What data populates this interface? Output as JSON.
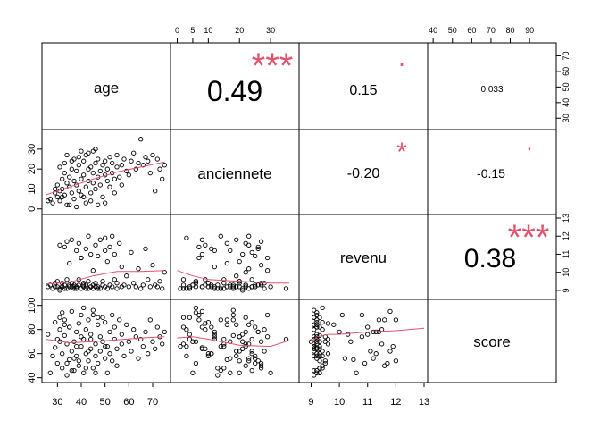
{
  "chart_data": {
    "type": "scatter",
    "variables": [
      "age",
      "anciennete",
      "revenu",
      "score"
    ],
    "axes": {
      "age": {
        "range": [
          25,
          76
        ],
        "ticks": [
          30,
          40,
          50,
          60,
          70
        ]
      },
      "anciennete": {
        "range": [
          -1,
          38
        ],
        "ticks_top": [
          0,
          5,
          10,
          20,
          30
        ],
        "ticks_left": [
          0,
          10,
          20,
          30
        ]
      },
      "revenu": {
        "range": [
          8.7,
          13
        ],
        "ticks": [
          9,
          10,
          11,
          12,
          13
        ]
      },
      "score": {
        "range": [
          39,
          102
        ],
        "ticks_top": [
          40,
          50,
          60,
          70,
          80,
          90
        ],
        "ticks_left": [
          40,
          60,
          80,
          100
        ]
      }
    },
    "correlations": [
      {
        "pair": [
          "age",
          "anciennete"
        ],
        "r_label": "0.49",
        "stars": "***",
        "text_size": "large"
      },
      {
        "pair": [
          "age",
          "revenu"
        ],
        "r_label": "0.15",
        "stars": ".",
        "text_size": "small"
      },
      {
        "pair": [
          "age",
          "score"
        ],
        "r_label": "0.033",
        "stars": "",
        "text_size": "tiny"
      },
      {
        "pair": [
          "anciennete",
          "revenu"
        ],
        "r_label": "-0.20",
        "stars": "*",
        "text_size": "small"
      },
      {
        "pair": [
          "anciennete",
          "score"
        ],
        "r_label": "-0.15",
        "stars": ".",
        "text_size": "small"
      },
      {
        "pair": [
          "revenu",
          "score"
        ],
        "r_label": "0.38",
        "stars": "***",
        "text_size": "large"
      }
    ],
    "smooth_color": "#DF536B",
    "star_color": "#DF536B",
    "point_style": "open-circle",
    "points": [
      [
        27,
        5,
        9.3,
        44
      ],
      [
        28,
        3,
        9.1,
        58
      ],
      [
        29,
        8,
        9.2,
        65
      ],
      [
        30,
        6,
        9.5,
        52
      ],
      [
        30,
        12,
        9.2,
        72
      ],
      [
        31,
        9,
        11.5,
        80
      ],
      [
        31,
        4,
        9.1,
        90
      ],
      [
        32,
        15,
        9.4,
        48
      ],
      [
        32,
        10,
        9.2,
        60
      ],
      [
        33,
        7,
        11.4,
        88
      ],
      [
        33,
        18,
        9.3,
        75
      ],
      [
        34,
        13,
        9.1,
        42
      ],
      [
        34,
        2,
        9.6,
        68
      ],
      [
        35,
        16,
        10.5,
        55
      ],
      [
        35,
        11,
        9.2,
        82
      ],
      [
        36,
        8,
        11.8,
        95
      ],
      [
        36,
        20,
        9.4,
        62
      ],
      [
        37,
        14,
        9.1,
        46
      ],
      [
        37,
        5,
        9.3,
        70
      ],
      [
        38,
        12,
        11.2,
        78
      ],
      [
        38,
        19,
        9.2,
        58
      ],
      [
        39,
        9,
        9.6,
        85
      ],
      [
        39,
        22,
        11.6,
        50
      ],
      [
        40,
        15,
        9.1,
        66
      ],
      [
        40,
        7,
        10.8,
        92
      ],
      [
        41,
        17,
        9.3,
        44
      ],
      [
        41,
        24,
        9.2,
        72
      ],
      [
        42,
        11,
        11.3,
        60
      ],
      [
        42,
        3,
        9.1,
        80
      ],
      [
        43,
        20,
        9.5,
        54
      ],
      [
        43,
        14,
        12.0,
        88
      ],
      [
        44,
        8,
        9.2,
        64
      ],
      [
        44,
        21,
        11.0,
        76
      ],
      [
        45,
        13,
        9.3,
        48
      ],
      [
        45,
        18,
        9.1,
        96
      ],
      [
        46,
        23,
        11.5,
        68
      ],
      [
        46,
        10,
        9.4,
        58
      ],
      [
        47,
        16,
        9.2,
        84
      ],
      [
        47,
        25,
        10.9,
        52
      ],
      [
        48,
        12,
        9.1,
        74
      ],
      [
        48,
        19,
        11.8,
        62
      ],
      [
        49,
        22,
        9.3,
        90
      ],
      [
        49,
        6,
        9.5,
        70
      ],
      [
        50,
        17,
        11.2,
        56
      ],
      [
        50,
        24,
        9.2,
        86
      ],
      [
        51,
        14,
        9.1,
        66
      ],
      [
        51,
        20,
        10.6,
        44
      ],
      [
        52,
        26,
        11.4,
        78
      ],
      [
        52,
        11,
        9.3,
        60
      ],
      [
        53,
        18,
        9.2,
        92
      ],
      [
        53,
        23,
        12.0,
        54
      ],
      [
        54,
        15,
        9.6,
        72
      ],
      [
        54,
        8,
        11.0,
        82
      ],
      [
        55,
        21,
        9.1,
        64
      ],
      [
        55,
        27,
        9.4,
        50
      ],
      [
        56,
        16,
        11.6,
        88
      ],
      [
        57,
        22,
        9.2,
        68
      ],
      [
        57,
        12,
        10.3,
        76
      ],
      [
        58,
        25,
        9.3,
        58
      ],
      [
        59,
        19,
        9.8,
        84
      ],
      [
        60,
        17,
        9.2,
        70
      ],
      [
        61,
        24,
        11.1,
        62
      ],
      [
        62,
        28,
        9.4,
        80
      ],
      [
        63,
        20,
        9.2,
        74
      ],
      [
        64,
        23,
        10.2,
        56
      ],
      [
        65,
        35,
        9.1,
        72
      ],
      [
        66,
        22,
        9.3,
        66
      ],
      [
        67,
        26,
        11.3,
        78
      ],
      [
        68,
        24,
        9.6,
        60
      ],
      [
        69,
        18,
        9.2,
        88
      ],
      [
        70,
        27,
        10.4,
        70
      ],
      [
        71,
        9,
        9.3,
        64
      ],
      [
        72,
        25,
        9.2,
        82
      ],
      [
        73,
        20,
        9.5,
        74
      ],
      [
        74,
        15,
        9.1,
        68
      ],
      [
        75,
        22,
        10.0,
        78
      ],
      [
        26,
        4,
        9.2,
        76
      ],
      [
        29,
        10,
        9.4,
        86
      ],
      [
        32,
        6,
        9.2,
        94
      ],
      [
        35,
        2,
        9.3,
        82
      ],
      [
        38,
        1,
        9.1,
        66
      ],
      [
        41,
        6,
        9.4,
        98
      ],
      [
        44,
        4,
        9.2,
        72
      ],
      [
        47,
        2,
        9.1,
        90
      ],
      [
        36,
        24,
        9.2,
        46
      ],
      [
        39,
        26,
        9.3,
        54
      ],
      [
        43,
        28,
        9.1,
        62
      ],
      [
        46,
        30,
        9.2,
        44
      ],
      [
        34,
        27,
        11.7,
        52
      ],
      [
        40,
        29,
        10.8,
        74
      ],
      [
        50,
        3,
        11.9,
        66
      ],
      [
        31,
        21,
        9.0,
        70
      ],
      [
        33,
        23,
        9.1,
        84
      ],
      [
        37,
        25,
        9.2,
        56
      ],
      [
        42,
        27,
        9.3,
        48
      ],
      [
        45,
        29,
        10.1,
        92
      ]
    ],
    "smooths": {
      "age_anciennete": [
        [
          25,
          7
        ],
        [
          35,
          11
        ],
        [
          45,
          15
        ],
        [
          55,
          18.5
        ],
        [
          65,
          21
        ],
        [
          75,
          23.5
        ]
      ],
      "age_revenu": [
        [
          25,
          9.35
        ],
        [
          35,
          9.45
        ],
        [
          45,
          9.8
        ],
        [
          55,
          10.05
        ],
        [
          65,
          10.05
        ],
        [
          75,
          10.1
        ]
      ],
      "age_score": [
        [
          25,
          72
        ],
        [
          35,
          69
        ],
        [
          45,
          70
        ],
        [
          55,
          71.5
        ],
        [
          65,
          73
        ],
        [
          75,
          74
        ]
      ],
      "anciennete_revenu": [
        [
          0,
          10.1
        ],
        [
          5,
          9.8
        ],
        [
          10,
          9.6
        ],
        [
          20,
          9.5
        ],
        [
          30,
          9.4
        ],
        [
          36,
          9.4
        ]
      ],
      "anciennete_score": [
        [
          0,
          73
        ],
        [
          5,
          74
        ],
        [
          10,
          72
        ],
        [
          20,
          67
        ],
        [
          30,
          66
        ],
        [
          36,
          71
        ]
      ],
      "revenu_score": [
        [
          9,
          68
        ],
        [
          9.2,
          74
        ],
        [
          9.6,
          76
        ],
        [
          10,
          76
        ],
        [
          11,
          78
        ],
        [
          12,
          79
        ],
        [
          13,
          81
        ]
      ]
    }
  }
}
